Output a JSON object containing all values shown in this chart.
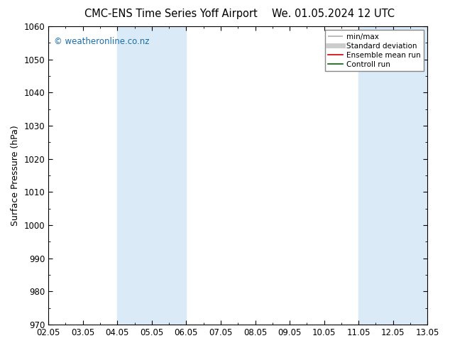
{
  "title_left": "CMC-ENS Time Series Yoff Airport",
  "title_right": "We. 01.05.2024 12 UTC",
  "ylabel": "Surface Pressure (hPa)",
  "ylim": [
    970,
    1060
  ],
  "yticks": [
    970,
    980,
    990,
    1000,
    1010,
    1020,
    1030,
    1040,
    1050,
    1060
  ],
  "xtick_labels": [
    "02.05",
    "03.05",
    "04.05",
    "05.05",
    "06.05",
    "07.05",
    "08.05",
    "09.05",
    "10.05",
    "11.05",
    "12.05",
    "13.05"
  ],
  "xtick_positions": [
    0,
    1,
    2,
    3,
    4,
    5,
    6,
    7,
    8,
    9,
    10,
    11
  ],
  "shaded_bands": [
    {
      "xmin": 2,
      "xmax": 4,
      "color": "#daeaf7"
    },
    {
      "xmin": 9,
      "xmax": 11,
      "color": "#daeaf7"
    }
  ],
  "watermark": "© weatheronline.co.nz",
  "watermark_color": "#1a6ea8",
  "legend_items": [
    {
      "label": "min/max",
      "color": "#b0b0b0",
      "lw": 1.2,
      "ls": "-",
      "type": "minmax"
    },
    {
      "label": "Standard deviation",
      "color": "#cccccc",
      "lw": 5,
      "ls": "-",
      "type": "stddev"
    },
    {
      "label": "Ensemble mean run",
      "color": "#cc0000",
      "lw": 1.2,
      "ls": "-",
      "type": "line"
    },
    {
      "label": "Controll run",
      "color": "#006600",
      "lw": 1.2,
      "ls": "-",
      "type": "line"
    }
  ],
  "bg_color": "#ffffff",
  "plot_bg_color": "#ffffff",
  "title_fontsize": 10.5,
  "axis_label_fontsize": 9,
  "tick_fontsize": 8.5
}
